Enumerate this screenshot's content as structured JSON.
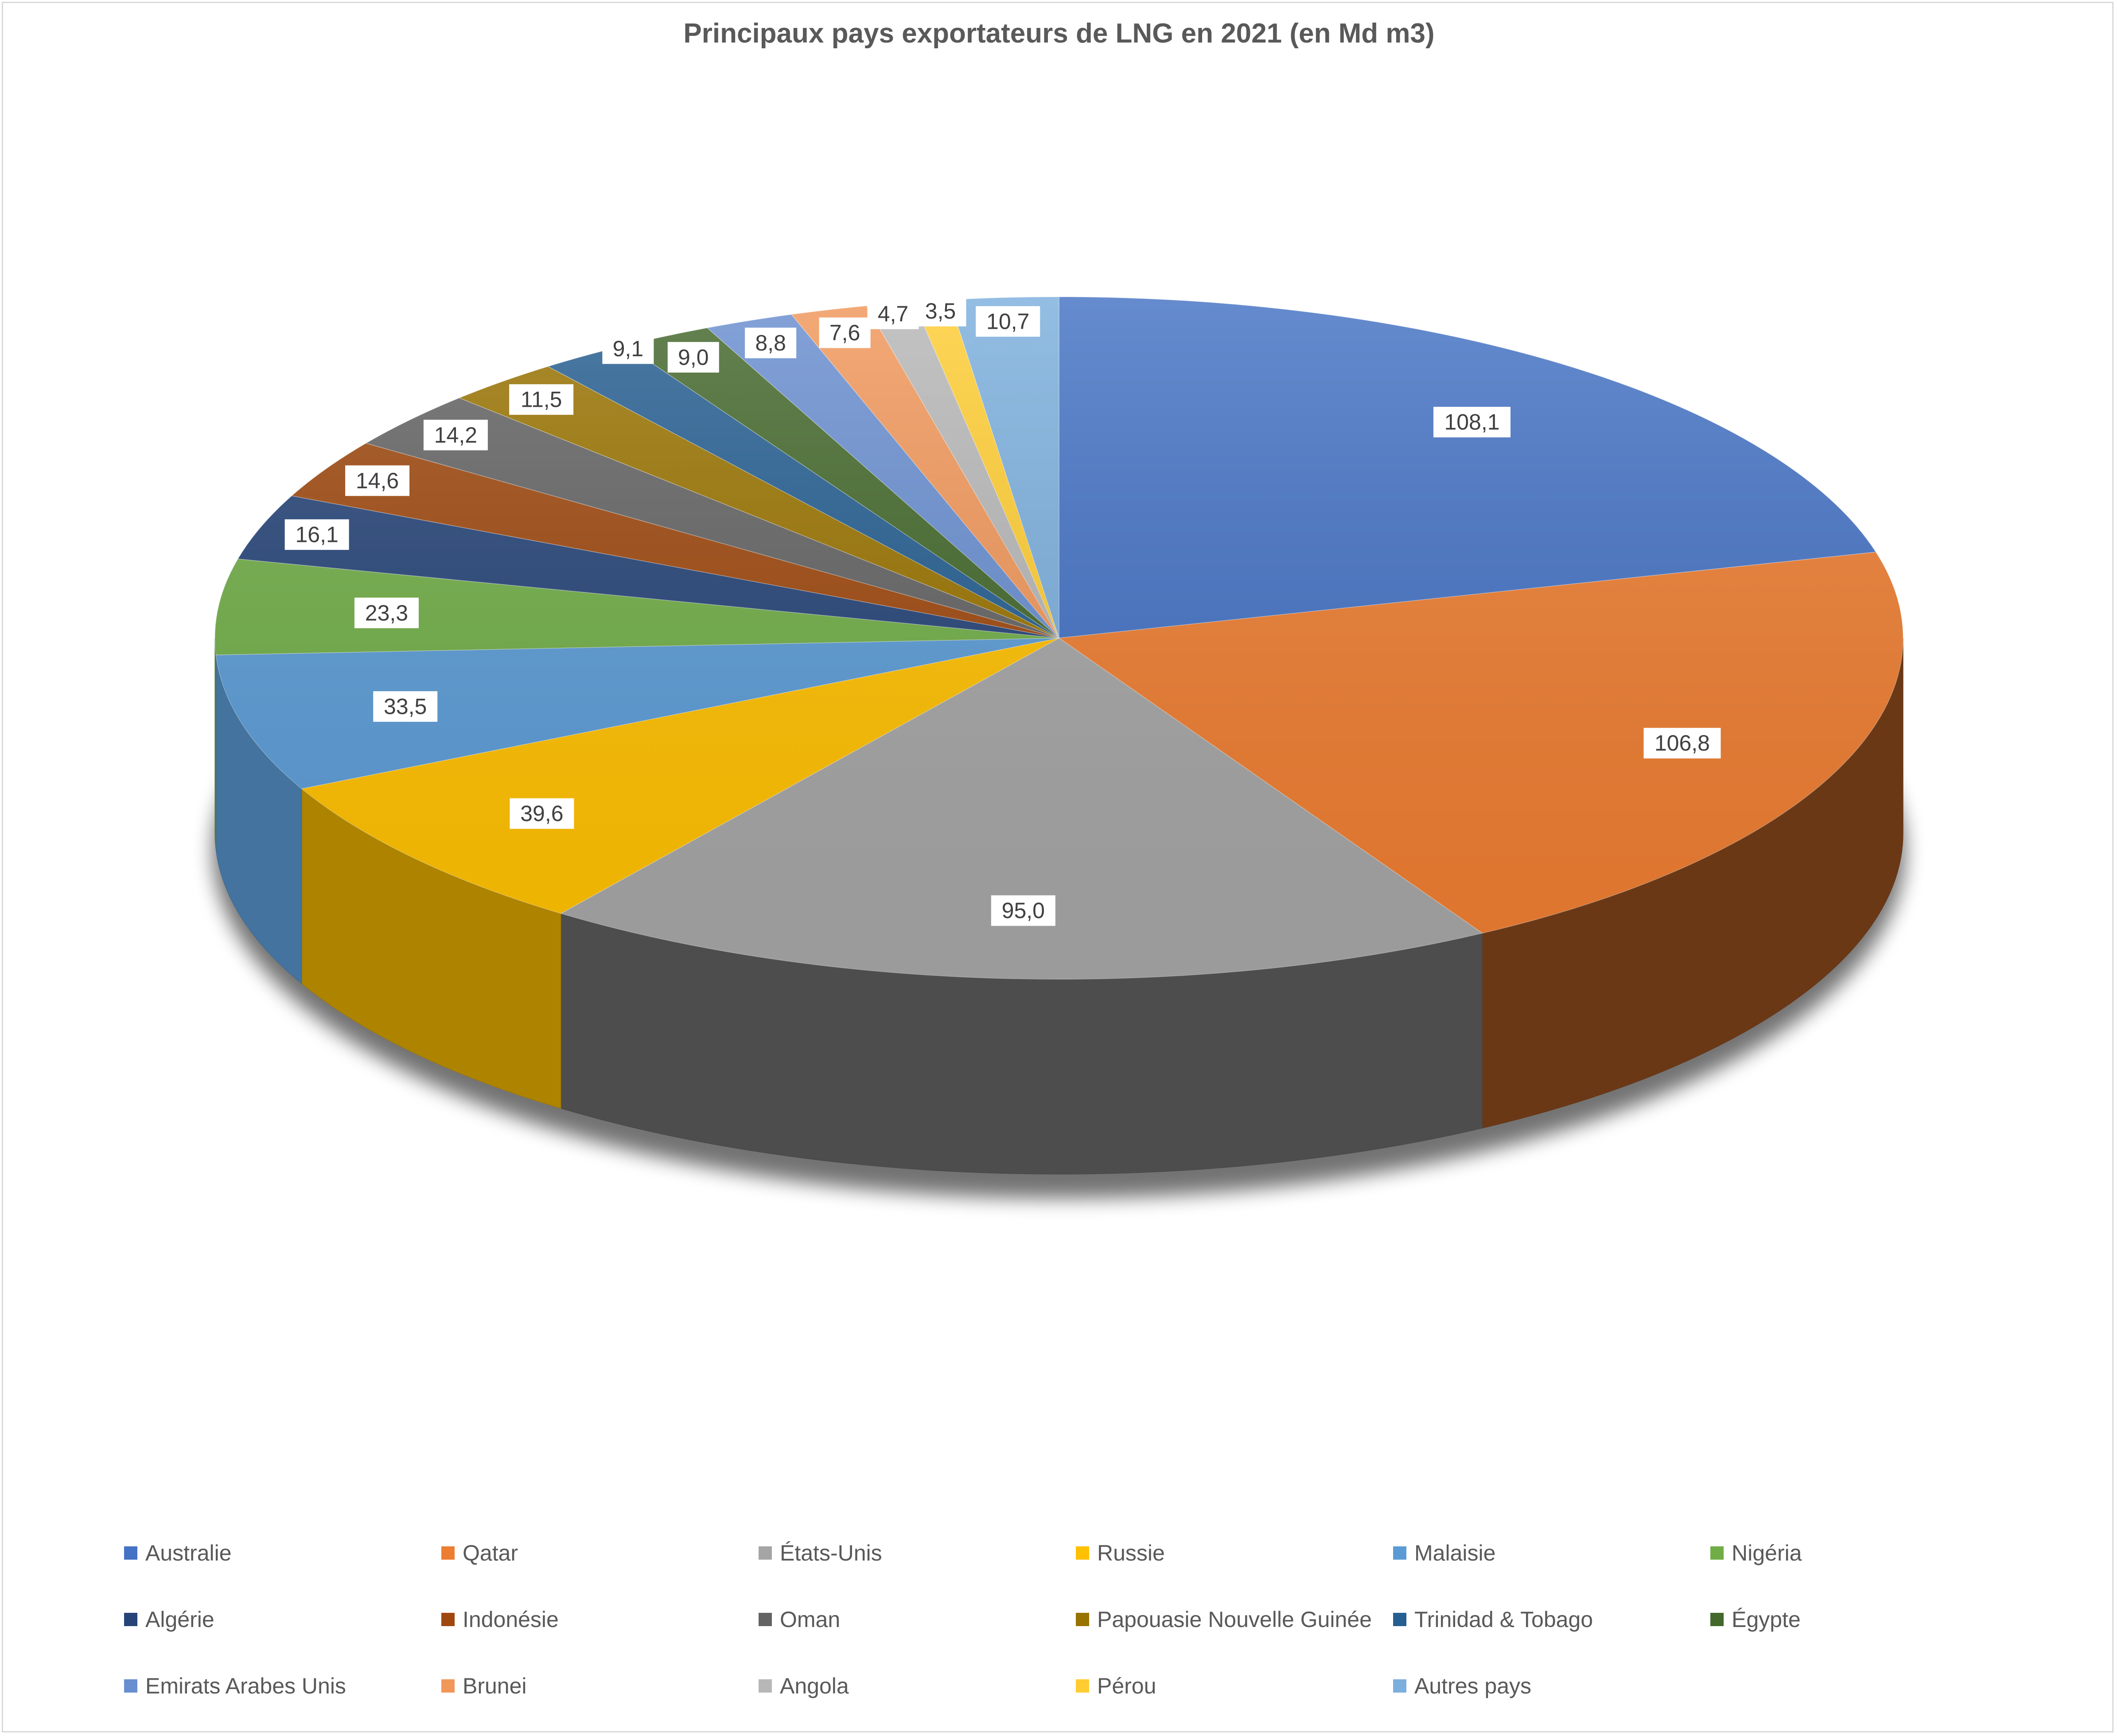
{
  "chart_data": {
    "type": "pie",
    "title": "Principaux pays exportateurs de LNG en 2021 (en Md m3)",
    "categories": [
      "Australie",
      "Qatar",
      "États-Unis",
      "Russie",
      "Malaisie",
      "Nigéria",
      "Algérie",
      "Indonésie",
      "Oman",
      "Papouasie Nouvelle Guinée",
      "Trinidad & Tobago",
      "Égypte",
      "Emirats Arabes Unis",
      "Brunei",
      "Angola",
      "Pérou",
      "Autres pays"
    ],
    "values": [
      108.1,
      106.8,
      95.0,
      39.6,
      33.5,
      23.3,
      16.1,
      14.6,
      14.2,
      11.5,
      9.1,
      9.0,
      8.8,
      7.6,
      4.7,
      3.5,
      10.7
    ],
    "data_labels": [
      "108,1",
      "106,8",
      "95,0",
      "39,6",
      "33,5",
      "23,3",
      "16,1",
      "14,6",
      "14,2",
      "11,5",
      "9,1",
      "9,0",
      "8,8",
      "7,6",
      "4,7",
      "3,5",
      "10,7"
    ],
    "colors": [
      "#4472C4",
      "#ED7D31",
      "#A5A5A5",
      "#FFC000",
      "#5B9BD5",
      "#70AD47",
      "#264478",
      "#9E480E",
      "#636363",
      "#997300",
      "#255E91",
      "#43682B",
      "#698ED0",
      "#F1975A",
      "#B7B7B7",
      "#FFCD33",
      "#7CAFDD"
    ],
    "legend_position": "bottom",
    "style": "3d-pie"
  }
}
